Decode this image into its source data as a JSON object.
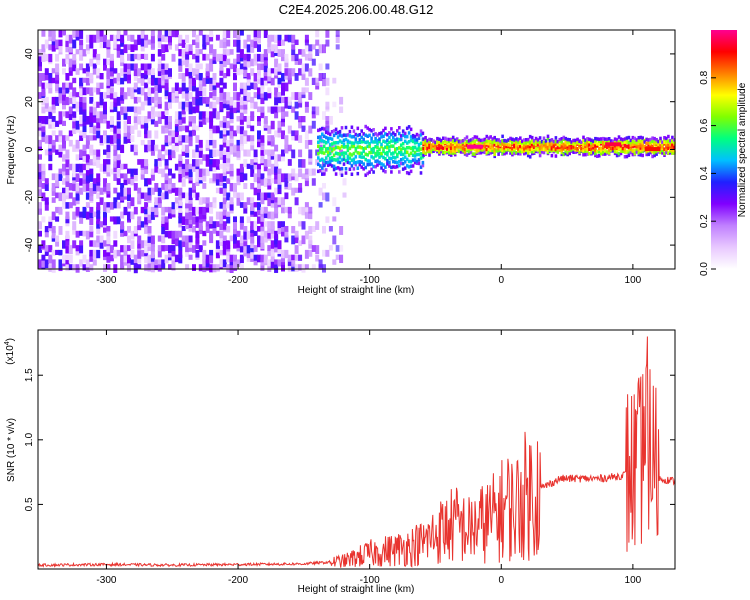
{
  "title": "C2E4.2025.206.00.48.G12",
  "chart_data": [
    {
      "type": "heatmap",
      "xlabel": "Height of straight line (km)",
      "ylabel": "Frequency (Hz)",
      "xlim": [
        -352,
        132
      ],
      "ylim": [
        -50,
        50
      ],
      "xticks": [
        -300,
        -200,
        -100,
        0,
        100
      ],
      "yticks": [
        -40,
        -20,
        0,
        20,
        40
      ],
      "colorbar": {
        "label": "Normalized spectral amplitude",
        "range": [
          0.0,
          1.0
        ],
        "ticks": [
          0.0,
          0.2,
          0.4,
          0.6,
          0.8
        ],
        "colors": [
          "#ffffff",
          "#e8c8ff",
          "#c080ff",
          "#8000ff",
          "#2020ff",
          "#00c0ff",
          "#00ff80",
          "#80ff00",
          "#ffff00",
          "#ff8000",
          "#ff0000",
          "#ff0090"
        ]
      },
      "regions": [
        {
          "x_range": [
            -352,
            -130
          ],
          "f_range": [
            -50,
            50
          ],
          "description": "broadband noise",
          "amplitude_range": [
            0.05,
            0.35
          ]
        },
        {
          "x_range": [
            -140,
            -60
          ],
          "f_center": 0,
          "f_width": 8,
          "amplitude_range": [
            0.3,
            0.7
          ]
        },
        {
          "x_range": [
            -60,
            132
          ],
          "f_center": 1,
          "f_width": 3,
          "amplitude_range": [
            0.5,
            1.0
          ]
        }
      ],
      "peaks": [
        {
          "x": -20,
          "f": 1,
          "amplitude": 1.0
        },
        {
          "x": 85,
          "f": 2,
          "amplitude": 0.95
        },
        {
          "x": 115,
          "f": 0,
          "amplitude": 0.9
        }
      ]
    },
    {
      "type": "line",
      "xlabel": "Height of straight line (km)",
      "ylabel": "SNR (10 * v/v)",
      "yscale_label": "(x10",
      "yscale_exp": "4",
      "yscale_close": ")",
      "xlim": [
        -352,
        132
      ],
      "ylim": [
        0,
        1.85
      ],
      "xticks": [
        -300,
        -200,
        -100,
        0,
        100
      ],
      "yticks": [
        0.5,
        1.0,
        1.5
      ],
      "ytick_labels": [
        "0.5",
        "1.0",
        "1.5"
      ],
      "color": "#e8332e",
      "series": [
        {
          "x": [
            -352,
            -300,
            -250,
            -200,
            -150,
            -120,
            -100,
            -80,
            -60,
            -45,
            -35,
            -25,
            -15,
            -5,
            5,
            10,
            15,
            25,
            35,
            45,
            60,
            75,
            90,
            100,
            105,
            110,
            115,
            120,
            132
          ],
          "y": [
            0.03,
            0.035,
            0.03,
            0.035,
            0.04,
            0.06,
            0.12,
            0.15,
            0.2,
            0.3,
            0.35,
            0.3,
            0.35,
            0.4,
            0.5,
            0.45,
            0.55,
            0.6,
            0.65,
            0.7,
            0.7,
            0.7,
            0.72,
            0.75,
            0.8,
            1.0,
            0.9,
            0.7,
            0.68
          ]
        }
      ]
    }
  ]
}
